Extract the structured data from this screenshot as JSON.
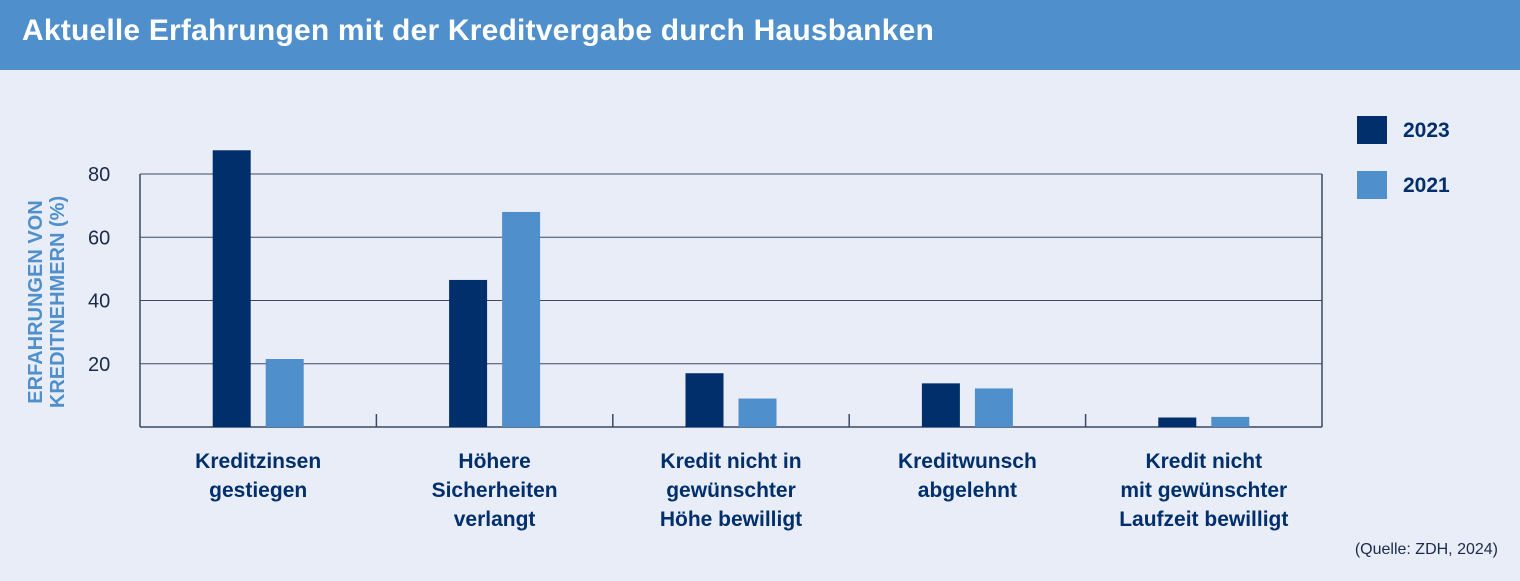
{
  "header": {
    "title": "Aktuelle Erfahrungen mit der Kreditvergabe durch Hausbanken"
  },
  "chart_data": {
    "type": "bar",
    "title": "Aktuelle Erfahrungen mit der Kreditvergabe durch Hausbanken",
    "ylabel_lines": [
      "ERFAHRUNGEN VON",
      "KREDITNEHMERN (%)"
    ],
    "ylim": [
      0,
      80
    ],
    "yticks": [
      20,
      40,
      60,
      80
    ],
    "grid": true,
    "legend_position": "top-right",
    "categories": [
      [
        "Kreditzinsen",
        "gestiegen"
      ],
      [
        "Höhere",
        "Sicherheiten",
        "verlangt"
      ],
      [
        "Kredit nicht in",
        "gewünschter",
        "Höhe bewilligt"
      ],
      [
        "Kreditwunsch",
        "abgelehnt"
      ],
      [
        "Kredit nicht",
        "mit gewünschter",
        "Laufzeit bewilligt"
      ]
    ],
    "series": [
      {
        "name": "2023",
        "color": "#002f6c",
        "values": [
          87.5,
          46.5,
          17,
          13.8,
          3
        ]
      },
      {
        "name": "2021",
        "color": "#4f8fcc",
        "values": [
          21.5,
          68,
          9,
          12.2,
          3.2
        ]
      }
    ],
    "source": "(Quelle: ZDH, 2024)"
  }
}
